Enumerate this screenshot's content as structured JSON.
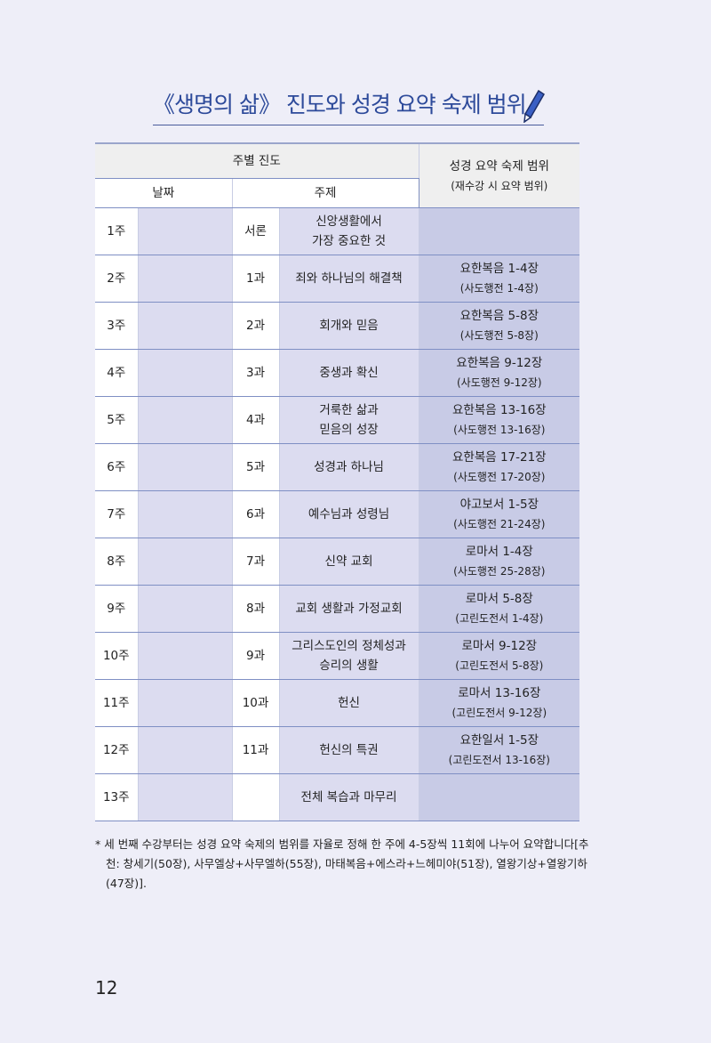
{
  "title": "《생명의 삶》 진도와 성경 요약 숙제 범위",
  "table": {
    "header_progress": "주별 진도",
    "header_date": "날짜",
    "header_topic": "주제",
    "header_range": "성경 요약 숙제 범위",
    "header_range_sub": "(재수강 시 요약 범위)",
    "rows": [
      {
        "week": "1주",
        "date": "",
        "lesson": "서론",
        "topic": "신앙생활에서\n가장 중요한 것",
        "range": "",
        "range_sub": ""
      },
      {
        "week": "2주",
        "date": "",
        "lesson": "1과",
        "topic": "죄와 하나님의 해결책",
        "range": "요한복음 1-4장",
        "range_sub": "(사도행전 1-4장)"
      },
      {
        "week": "3주",
        "date": "",
        "lesson": "2과",
        "topic": "회개와 믿음",
        "range": "요한복음 5-8장",
        "range_sub": "(사도행전 5-8장)"
      },
      {
        "week": "4주",
        "date": "",
        "lesson": "3과",
        "topic": "중생과 확신",
        "range": "요한복음 9-12장",
        "range_sub": "(사도행전 9-12장)"
      },
      {
        "week": "5주",
        "date": "",
        "lesson": "4과",
        "topic": "거룩한 삶과\n믿음의 성장",
        "range": "요한복음 13-16장",
        "range_sub": "(사도행전 13-16장)"
      },
      {
        "week": "6주",
        "date": "",
        "lesson": "5과",
        "topic": "성경과 하나님",
        "range": "요한복음 17-21장",
        "range_sub": "(사도행전 17-20장)"
      },
      {
        "week": "7주",
        "date": "",
        "lesson": "6과",
        "topic": "예수님과 성령님",
        "range": "야고보서 1-5장",
        "range_sub": "(사도행전 21-24장)"
      },
      {
        "week": "8주",
        "date": "",
        "lesson": "7과",
        "topic": "신약 교회",
        "range": "로마서 1-4장",
        "range_sub": "(사도행전 25-28장)"
      },
      {
        "week": "9주",
        "date": "",
        "lesson": "8과",
        "topic": "교회 생활과 가정교회",
        "range": "로마서 5-8장",
        "range_sub": "(고린도전서 1-4장)"
      },
      {
        "week": "10주",
        "date": "",
        "lesson": "9과",
        "topic": "그리스도인의 정체성과\n승리의 생활",
        "range": "로마서 9-12장",
        "range_sub": "(고린도전서 5-8장)"
      },
      {
        "week": "11주",
        "date": "",
        "lesson": "10과",
        "topic": "헌신",
        "range": "로마서 13-16장",
        "range_sub": "(고린도전서 9-12장)"
      },
      {
        "week": "12주",
        "date": "",
        "lesson": "11과",
        "topic": "헌신의 특권",
        "range": "요한일서 1-5장",
        "range_sub": "(고린도전서 13-16장)"
      },
      {
        "week": "13주",
        "date": "",
        "lesson": "",
        "topic": "전체 복습과 마무리",
        "range": "",
        "range_sub": ""
      }
    ]
  },
  "footnote": "* 세 번째 수강부터는 성경 요약 숙제의 범위를 자율로 정해 한 주에 4-5장씩 11회에 나누어 요약합니다[추천: 창세기(50장), 사무엘상+사무엘하(55장), 마태복음+에스라+느헤미야(51장), 열왕기상+열왕기하(47장)].",
  "page_number": "12",
  "colors": {
    "background": "#eeeef8",
    "title": "#2d4a9a",
    "cell_light": "#dcdcf0",
    "cell_range": "#c8cbe6",
    "border": "#8090c0"
  },
  "icons": {
    "title_decoration": "pencil-icon"
  }
}
